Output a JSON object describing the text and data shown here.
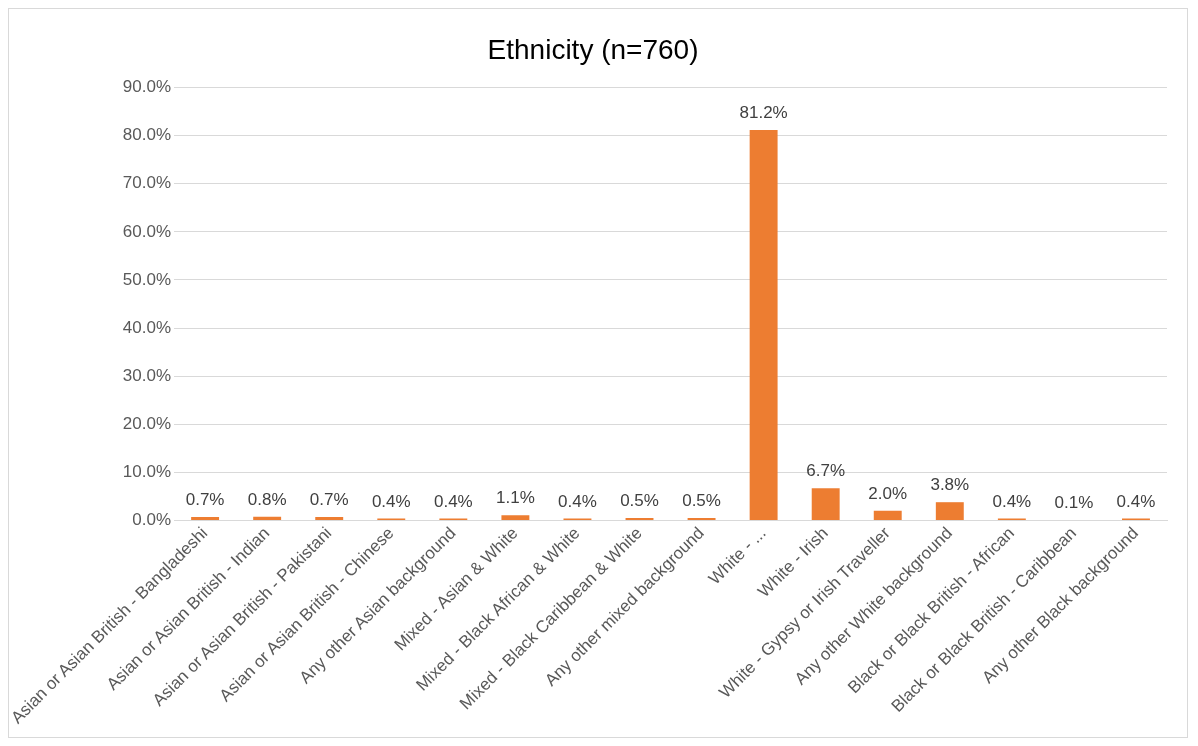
{
  "chart_data": {
    "type": "bar",
    "title": "Ethnicity (n=760)",
    "categories": [
      "Asian or Asian British - Bangladeshi",
      "Asian or Asian British - Indian",
      "Asian or Asian British - Pakistani",
      "Asian or Asian British - Chinese",
      "Any other Asian background",
      "Mixed - Asian & White",
      "Mixed - Black African & White",
      "Mixed - Black Caribbean & White",
      "Any other mixed background",
      "White - ...",
      "White - Irish",
      "White - Gypsy or Irish Traveller",
      "Any other White background",
      "Black or Black British - African",
      "Black or Black British - Caribbean",
      "Any other Black background"
    ],
    "values": [
      0.7,
      0.8,
      0.7,
      0.4,
      0.4,
      1.1,
      0.4,
      0.5,
      0.5,
      81.2,
      6.7,
      2.0,
      3.8,
      0.4,
      0.1,
      0.4
    ],
    "value_labels": [
      "0.7%",
      "0.8%",
      "0.7%",
      "0.4%",
      "0.4%",
      "1.1%",
      "0.4%",
      "0.5%",
      "0.5%",
      "81.2%",
      "6.7%",
      "2.0%",
      "3.8%",
      "0.4%",
      "0.1%",
      "0.4%"
    ],
    "color": "#ed7d31",
    "ylim": [
      0,
      90
    ],
    "yticks": [
      {
        "value": 0,
        "label": "0.0%"
      },
      {
        "value": 10,
        "label": "10.0%"
      },
      {
        "value": 20,
        "label": "20.0%"
      },
      {
        "value": 30,
        "label": "30.0%"
      },
      {
        "value": 40,
        "label": "40.0%"
      },
      {
        "value": 50,
        "label": "50.0%"
      },
      {
        "value": 60,
        "label": "60.0%"
      },
      {
        "value": 70,
        "label": "70.0%"
      },
      {
        "value": 80,
        "label": "80.0%"
      },
      {
        "value": 90,
        "label": "90.0%"
      }
    ],
    "grid": "y",
    "legend": false
  }
}
